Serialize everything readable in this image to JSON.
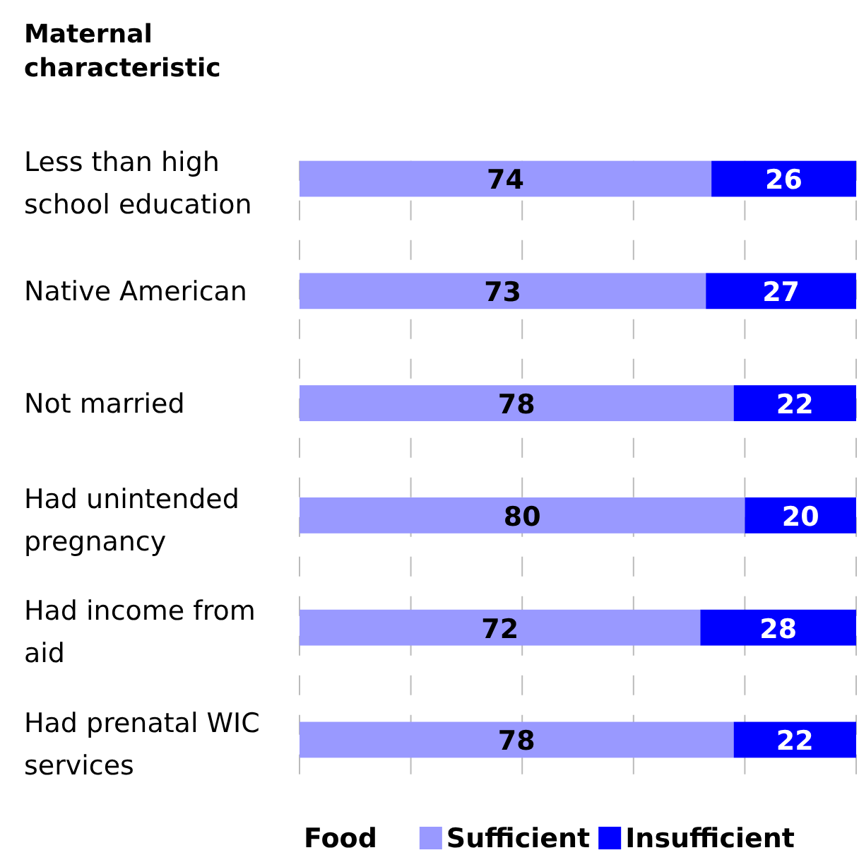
{
  "chart_data": {
    "type": "bar",
    "orientation": "horizontal",
    "stacked": true,
    "ylabel": "Maternal characteristic",
    "legend_title": "Food",
    "categories": [
      "Less than high school education",
      "Native American",
      "Not married",
      "Had unintended pregnancy",
      "Had income from aid",
      "Had prenatal WIC services"
    ],
    "series": [
      {
        "name": "Sufficient",
        "color": "#9999ff",
        "values": [
          74,
          73,
          78,
          80,
          72,
          78
        ]
      },
      {
        "name": "Insufficient",
        "color": "#0000ff",
        "values": [
          26,
          27,
          22,
          20,
          28,
          22
        ]
      }
    ],
    "xlim": [
      0,
      100
    ],
    "xticks": [
      {
        "value": 0,
        "label": null
      },
      {
        "value": 20,
        "label": null
      },
      {
        "value": 40,
        "label": null
      },
      {
        "value": 60,
        "label": null
      },
      {
        "value": 80,
        "label": null
      },
      {
        "value": 100,
        "label": null
      }
    ],
    "grid": "x",
    "data_labels": true,
    "legend": "bottom"
  }
}
